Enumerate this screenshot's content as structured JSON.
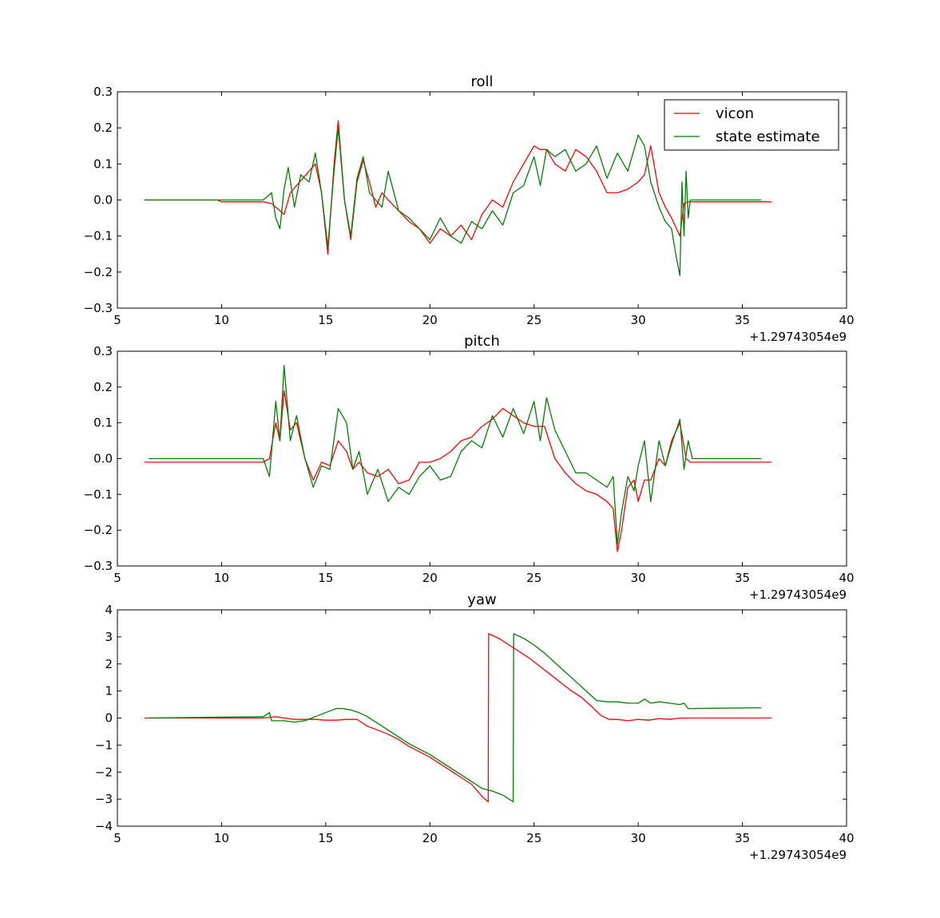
{
  "colors": {
    "vicon": "#ff0000",
    "state_estimate": "#008000",
    "axes": "#000000",
    "background": "#ffffff"
  },
  "chart_data": [
    {
      "type": "line",
      "title": "roll",
      "xlabel": "",
      "ylabel": "",
      "xlim": [
        5,
        40
      ],
      "ylim": [
        -0.3,
        0.3
      ],
      "xticks": [
        5,
        10,
        15,
        20,
        25,
        30,
        35,
        40
      ],
      "yticks": [
        -0.3,
        -0.2,
        -0.1,
        0.0,
        0.1,
        0.2,
        0.3
      ],
      "xtick_labels": [
        "5",
        "10",
        "15",
        "20",
        "25",
        "30",
        "35",
        "40"
      ],
      "ytick_labels": [
        "−0.3",
        "−0.2",
        "−0.1",
        "0.0",
        "0.1",
        "0.2",
        "0.3"
      ],
      "offset_text": "+1.29743054e9",
      "grid": false,
      "legend": {
        "placement": "top-right",
        "entries": [
          "vicon",
          "state estimate"
        ]
      },
      "series": [
        {
          "name": "vicon",
          "x": [
            6.3,
            9.8,
            10.0,
            11.0,
            12.0,
            12.4,
            12.8,
            13.0,
            13.3,
            13.6,
            13.9,
            14.2,
            14.5,
            14.8,
            15.1,
            15.4,
            15.6,
            15.9,
            16.2,
            16.5,
            16.8,
            17.1,
            17.4,
            17.7,
            18.0,
            18.5,
            19.0,
            19.5,
            20.0,
            20.5,
            21.0,
            21.5,
            22.0,
            22.5,
            23.0,
            23.5,
            24.0,
            24.5,
            25.0,
            25.3,
            25.6,
            26.0,
            26.5,
            27.0,
            27.5,
            28.0,
            28.5,
            29.0,
            29.5,
            30.0,
            30.3,
            30.6,
            31.0,
            31.3,
            31.6,
            32.0,
            32.2,
            32.4,
            32.8,
            34.0,
            35.0,
            36.4
          ],
          "y": [
            0.0,
            0.0,
            -0.005,
            -0.005,
            -0.005,
            -0.01,
            -0.03,
            -0.04,
            0.02,
            0.04,
            0.06,
            0.08,
            0.1,
            0.02,
            -0.15,
            0.1,
            0.22,
            0.0,
            -0.11,
            0.05,
            0.11,
            0.05,
            -0.02,
            0.02,
            0.0,
            -0.03,
            -0.06,
            -0.08,
            -0.12,
            -0.08,
            -0.1,
            -0.07,
            -0.11,
            -0.04,
            0.0,
            -0.02,
            0.05,
            0.1,
            0.15,
            0.14,
            0.14,
            0.1,
            0.08,
            0.14,
            0.12,
            0.08,
            0.02,
            0.02,
            0.03,
            0.05,
            0.07,
            0.15,
            0.02,
            -0.02,
            -0.05,
            -0.1,
            -0.01,
            -0.005,
            -0.005,
            -0.005,
            -0.005,
            -0.005
          ]
        },
        {
          "name": "state estimate",
          "x": [
            6.3,
            9.8,
            12.0,
            12.4,
            12.6,
            12.8,
            13.0,
            13.2,
            13.5,
            13.8,
            14.2,
            14.5,
            14.8,
            15.1,
            15.4,
            15.6,
            15.9,
            16.2,
            16.5,
            16.8,
            17.1,
            17.4,
            17.7,
            18.0,
            18.5,
            19.0,
            19.5,
            20.0,
            20.5,
            21.0,
            21.5,
            22.0,
            22.5,
            23.0,
            23.5,
            24.0,
            24.5,
            25.0,
            25.3,
            25.6,
            26.0,
            26.5,
            27.0,
            27.5,
            28.0,
            28.5,
            29.0,
            29.5,
            30.0,
            30.3,
            30.6,
            31.0,
            31.3,
            31.6,
            31.8,
            32.0,
            32.1,
            32.2,
            32.3,
            32.4,
            32.5,
            33.0,
            34.0,
            35.0,
            35.9
          ],
          "y": [
            0.0,
            0.0,
            0.0,
            0.02,
            -0.05,
            -0.08,
            0.03,
            0.09,
            -0.02,
            0.07,
            0.05,
            0.13,
            0.02,
            -0.13,
            0.08,
            0.2,
            0.0,
            -0.1,
            0.06,
            0.12,
            0.02,
            0.0,
            -0.02,
            0.08,
            -0.03,
            -0.05,
            -0.08,
            -0.11,
            -0.05,
            -0.1,
            -0.12,
            -0.06,
            -0.08,
            -0.03,
            -0.07,
            0.02,
            0.04,
            0.12,
            0.04,
            0.14,
            0.12,
            0.14,
            0.08,
            0.1,
            0.15,
            0.06,
            0.13,
            0.08,
            0.18,
            0.15,
            0.05,
            -0.02,
            -0.06,
            -0.08,
            -0.15,
            -0.21,
            0.05,
            -0.1,
            0.08,
            -0.05,
            0.0,
            0.0,
            0.0,
            0.0,
            0.0
          ]
        }
      ]
    },
    {
      "type": "line",
      "title": "pitch",
      "xlabel": "",
      "ylabel": "",
      "xlim": [
        5,
        40
      ],
      "ylim": [
        -0.3,
        0.3
      ],
      "xticks": [
        5,
        10,
        15,
        20,
        25,
        30,
        35,
        40
      ],
      "yticks": [
        -0.3,
        -0.2,
        -0.1,
        0.0,
        0.1,
        0.2,
        0.3
      ],
      "xtick_labels": [
        "5",
        "10",
        "15",
        "20",
        "25",
        "30",
        "35",
        "40"
      ],
      "ytick_labels": [
        "−0.3",
        "−0.2",
        "−0.1",
        "0.0",
        "0.1",
        "0.2",
        "0.3"
      ],
      "offset_text": "+1.29743054e9",
      "grid": false,
      "series": [
        {
          "name": "vicon",
          "x": [
            6.3,
            9.8,
            12.0,
            12.3,
            12.6,
            12.8,
            13.0,
            13.3,
            13.6,
            14.0,
            14.4,
            14.8,
            15.2,
            15.6,
            16.0,
            16.3,
            16.6,
            17.0,
            17.5,
            18.0,
            18.5,
            19.0,
            19.5,
            20.0,
            20.5,
            21.0,
            21.5,
            22.0,
            22.5,
            23.0,
            23.5,
            24.0,
            24.5,
            25.0,
            25.5,
            26.0,
            26.5,
            27.0,
            27.5,
            28.0,
            28.5,
            28.8,
            29.0,
            29.2,
            29.5,
            29.8,
            30.0,
            30.3,
            30.6,
            31.0,
            31.3,
            31.6,
            32.0,
            32.3,
            32.5,
            34.0,
            36.4
          ],
          "y": [
            -0.01,
            -0.01,
            -0.01,
            0.0,
            0.1,
            0.05,
            0.19,
            0.08,
            0.1,
            0.0,
            -0.06,
            -0.01,
            -0.02,
            0.05,
            0.02,
            -0.03,
            -0.01,
            -0.04,
            -0.05,
            -0.03,
            -0.07,
            -0.06,
            -0.01,
            -0.01,
            0.0,
            0.02,
            0.05,
            0.06,
            0.09,
            0.11,
            0.14,
            0.12,
            0.1,
            0.09,
            0.09,
            0.0,
            -0.04,
            -0.07,
            -0.09,
            -0.1,
            -0.12,
            -0.14,
            -0.26,
            -0.2,
            -0.08,
            -0.06,
            -0.12,
            -0.06,
            -0.06,
            0.0,
            -0.02,
            0.05,
            0.1,
            0.0,
            -0.01,
            -0.01,
            -0.01
          ]
        },
        {
          "name": "state estimate",
          "x": [
            6.5,
            9.8,
            12.0,
            12.3,
            12.6,
            12.8,
            13.0,
            13.3,
            13.6,
            14.0,
            14.4,
            14.8,
            15.2,
            15.6,
            16.0,
            16.3,
            16.6,
            17.0,
            17.5,
            18.0,
            18.5,
            19.0,
            19.5,
            20.0,
            20.5,
            21.0,
            21.5,
            22.0,
            22.5,
            23.0,
            23.5,
            24.0,
            24.5,
            25.0,
            25.3,
            25.6,
            26.0,
            26.5,
            27.0,
            27.5,
            28.0,
            28.5,
            28.8,
            29.0,
            29.2,
            29.5,
            29.8,
            30.0,
            30.3,
            30.6,
            31.0,
            31.3,
            31.6,
            32.0,
            32.2,
            32.4,
            32.6,
            34.0,
            35.9
          ],
          "y": [
            0.0,
            0.0,
            0.0,
            -0.05,
            0.16,
            0.05,
            0.26,
            0.05,
            0.12,
            0.0,
            -0.08,
            -0.02,
            -0.03,
            0.14,
            0.1,
            -0.03,
            0.02,
            -0.1,
            -0.03,
            -0.12,
            -0.08,
            -0.1,
            -0.05,
            -0.02,
            -0.06,
            -0.05,
            0.02,
            0.05,
            0.03,
            0.12,
            0.06,
            0.14,
            0.07,
            0.16,
            0.05,
            0.17,
            0.08,
            0.02,
            -0.04,
            -0.04,
            -0.06,
            -0.08,
            -0.05,
            -0.24,
            -0.15,
            -0.05,
            -0.09,
            -0.02,
            0.05,
            -0.12,
            0.05,
            -0.02,
            0.04,
            0.11,
            -0.03,
            0.05,
            0.0,
            0.0,
            0.0
          ]
        }
      ]
    },
    {
      "type": "line",
      "title": "yaw",
      "xlabel": "",
      "ylabel": "",
      "xlim": [
        5,
        40
      ],
      "ylim": [
        -4,
        4
      ],
      "xticks": [
        5,
        10,
        15,
        20,
        25,
        30,
        35,
        40
      ],
      "yticks": [
        -4,
        -3,
        -2,
        -1,
        0,
        1,
        2,
        3,
        4
      ],
      "xtick_labels": [
        "5",
        "10",
        "15",
        "20",
        "25",
        "30",
        "35",
        "40"
      ],
      "ytick_labels": [
        "−4",
        "−3",
        "−2",
        "−1",
        "0",
        "1",
        "2",
        "3",
        "4"
      ],
      "offset_text": "+1.29743054e9",
      "grid": false,
      "series": [
        {
          "name": "vicon",
          "x": [
            6.3,
            12.0,
            12.6,
            13.0,
            13.5,
            14.0,
            14.5,
            15.0,
            15.5,
            16.0,
            16.5,
            17.0,
            17.5,
            18.0,
            18.5,
            19.0,
            19.5,
            20.0,
            20.5,
            21.0,
            21.5,
            22.0,
            22.5,
            22.8,
            22.82,
            23.3,
            23.8,
            24.3,
            24.8,
            25.3,
            25.8,
            26.3,
            26.8,
            27.3,
            27.8,
            28.2,
            28.6,
            29.0,
            29.5,
            30.0,
            30.5,
            31.0,
            31.5,
            32.0,
            33.0,
            36.4
          ],
          "y": [
            0.0,
            0.0,
            0.05,
            0.0,
            -0.05,
            -0.05,
            -0.05,
            -0.08,
            -0.08,
            -0.05,
            -0.05,
            -0.3,
            -0.45,
            -0.6,
            -0.8,
            -1.05,
            -1.25,
            -1.45,
            -1.7,
            -1.95,
            -2.2,
            -2.45,
            -2.9,
            -3.1,
            3.12,
            2.95,
            2.7,
            2.45,
            2.2,
            1.9,
            1.6,
            1.3,
            1.0,
            0.75,
            0.4,
            0.1,
            -0.05,
            -0.05,
            -0.1,
            -0.05,
            -0.08,
            -0.02,
            -0.05,
            0.0,
            0.0,
            0.0
          ]
        },
        {
          "name": "state estimate",
          "x": [
            6.5,
            12.0,
            12.2,
            12.3,
            12.4,
            13.0,
            13.5,
            14.0,
            14.5,
            15.0,
            15.5,
            15.8,
            16.2,
            16.6,
            17.0,
            17.5,
            18.0,
            18.5,
            19.0,
            19.5,
            20.0,
            20.5,
            21.0,
            21.5,
            22.0,
            22.5,
            23.0,
            23.5,
            24.0,
            24.02,
            24.5,
            25.0,
            25.5,
            26.0,
            26.5,
            27.0,
            27.5,
            28.0,
            28.5,
            29.0,
            29.5,
            30.0,
            30.3,
            30.6,
            31.0,
            31.5,
            32.0,
            32.2,
            32.4,
            32.5,
            35.9
          ],
          "y": [
            0.0,
            0.05,
            0.15,
            0.2,
            -0.1,
            -0.1,
            -0.15,
            -0.1,
            0.05,
            0.2,
            0.35,
            0.35,
            0.3,
            0.2,
            0.05,
            -0.2,
            -0.45,
            -0.7,
            -0.95,
            -1.15,
            -1.35,
            -1.6,
            -1.85,
            -2.1,
            -2.35,
            -2.6,
            -2.7,
            -2.85,
            -3.1,
            3.12,
            2.95,
            2.7,
            2.4,
            2.05,
            1.7,
            1.35,
            1.0,
            0.65,
            0.6,
            0.6,
            0.55,
            0.55,
            0.7,
            0.55,
            0.6,
            0.55,
            0.5,
            0.55,
            0.35,
            0.35,
            0.38
          ]
        }
      ]
    }
  ]
}
